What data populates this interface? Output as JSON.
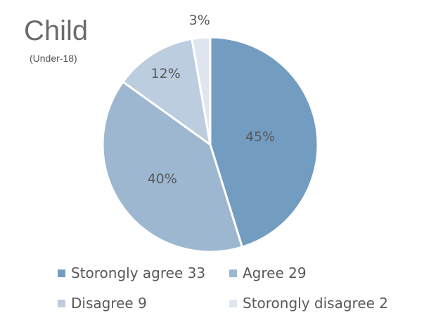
{
  "chart_data": {
    "type": "pie",
    "title": "Child",
    "subtitle": "(Under-18)",
    "slices": [
      {
        "name": "Storongly agree",
        "value": 33,
        "percent_label": "45%",
        "legend_label": "Storongly agree 33",
        "color": "#739cc1"
      },
      {
        "name": "Agree",
        "value": 29,
        "percent_label": "40%",
        "legend_label": "Agree 29",
        "color": "#9db7d0"
      },
      {
        "name": "Disagree",
        "value": 9,
        "percent_label": "12%",
        "legend_label": "Disagree 9",
        "color": "#bccddf"
      },
      {
        "name": "Storongly disagree",
        "value": 2,
        "percent_label": "3%",
        "legend_label": "Storongly disagree 2",
        "color": "#dfe6f0"
      }
    ],
    "legend_position": "bottom"
  }
}
